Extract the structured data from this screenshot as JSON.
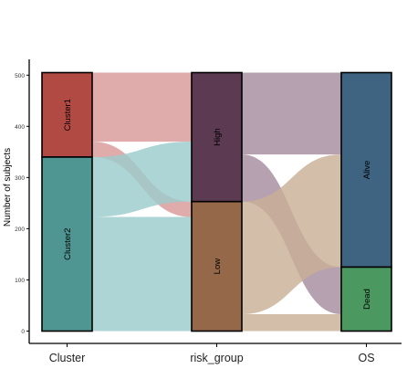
{
  "chart_data": {
    "type": "alluvial",
    "ylabel": "Number of subjects",
    "ylim": [
      0,
      513
    ],
    "yticks": [
      0,
      100,
      200,
      300,
      400,
      500
    ],
    "axes": [
      "Cluster",
      "risk_group",
      "OS"
    ],
    "strata": {
      "Cluster": [
        {
          "label": "Cluster1",
          "value": 165,
          "color": "#b24a44"
        },
        {
          "label": "Cluster2",
          "value": 340,
          "color": "#4f9693"
        }
      ],
      "risk_group": [
        {
          "label": "High",
          "value": 252,
          "color": "#5b3a52"
        },
        {
          "label": "Low",
          "value": 253,
          "color": "#946848"
        }
      ],
      "OS": [
        {
          "label": "Alive",
          "value": 380,
          "color": "#3f6481"
        },
        {
          "label": "Dead",
          "value": 125,
          "color": "#4b9860"
        }
      ]
    },
    "flows_1": [
      {
        "from": "Cluster1",
        "to": "High",
        "value": 135,
        "color": "#d99898"
      },
      {
        "from": "Cluster1",
        "to": "Low",
        "value": 30,
        "color": "#d99898"
      },
      {
        "from": "Cluster2",
        "to": "High",
        "value": 117,
        "color": "#9ccccc"
      },
      {
        "from": "Cluster2",
        "to": "Low",
        "value": 223,
        "color": "#9ccccc"
      }
    ],
    "flows_2": [
      {
        "from": "High",
        "to": "Alive",
        "value": 160,
        "color": "#a68c9f"
      },
      {
        "from": "High",
        "to": "Dead",
        "value": 92,
        "color": "#a68c9f"
      },
      {
        "from": "Low",
        "to": "Alive",
        "value": 220,
        "color": "#c9b096"
      },
      {
        "from": "Low",
        "to": "Dead",
        "value": 33,
        "color": "#c9b096"
      }
    ]
  }
}
